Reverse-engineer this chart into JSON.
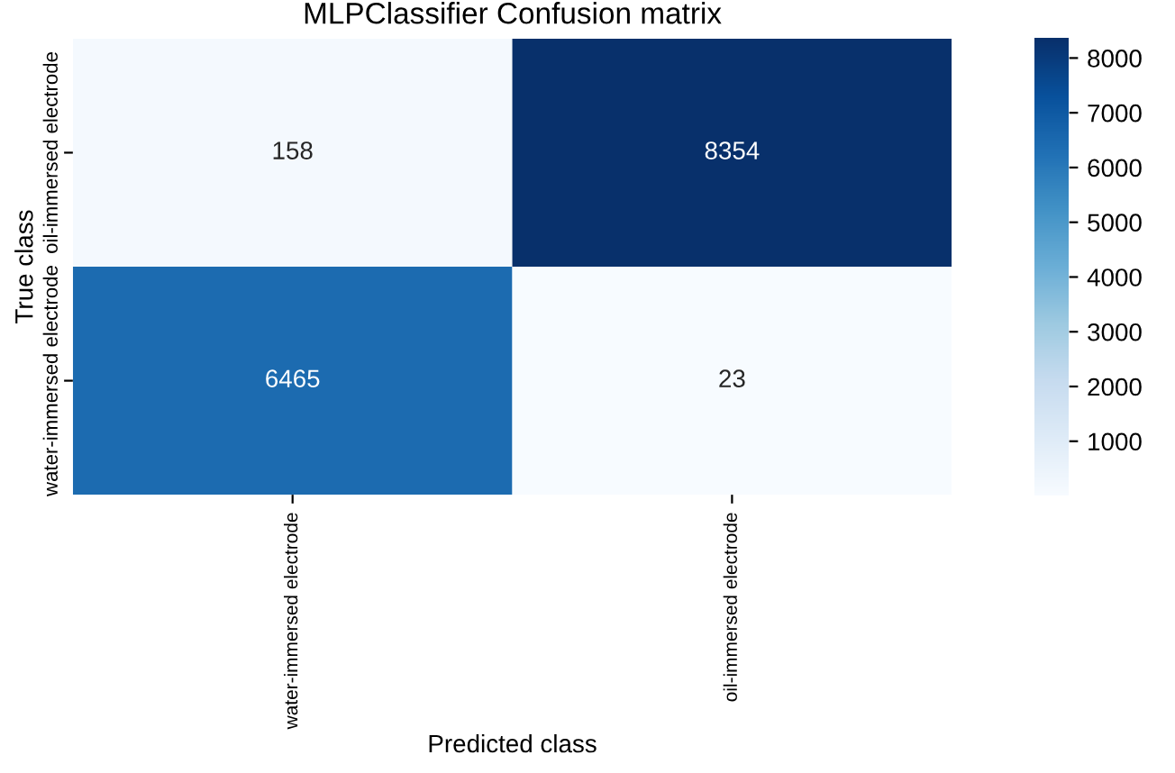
{
  "chart_data": {
    "type": "heatmap",
    "title": "MLPClassifier Confusion matrix",
    "xlabel": "Predicted class",
    "ylabel": "True class",
    "categories": [
      "water-immersed electrode",
      "oil-immersed electrode"
    ],
    "y_categories": [
      "oil-immersed electrode",
      "water-immersed electrode"
    ],
    "cells": [
      [
        158,
        8354
      ],
      [
        6465,
        23
      ]
    ],
    "data_labels": true,
    "clim": [
      23,
      8354
    ],
    "cticks": [
      1000,
      2000,
      3000,
      4000,
      5000,
      6000,
      7000,
      8000
    ]
  }
}
